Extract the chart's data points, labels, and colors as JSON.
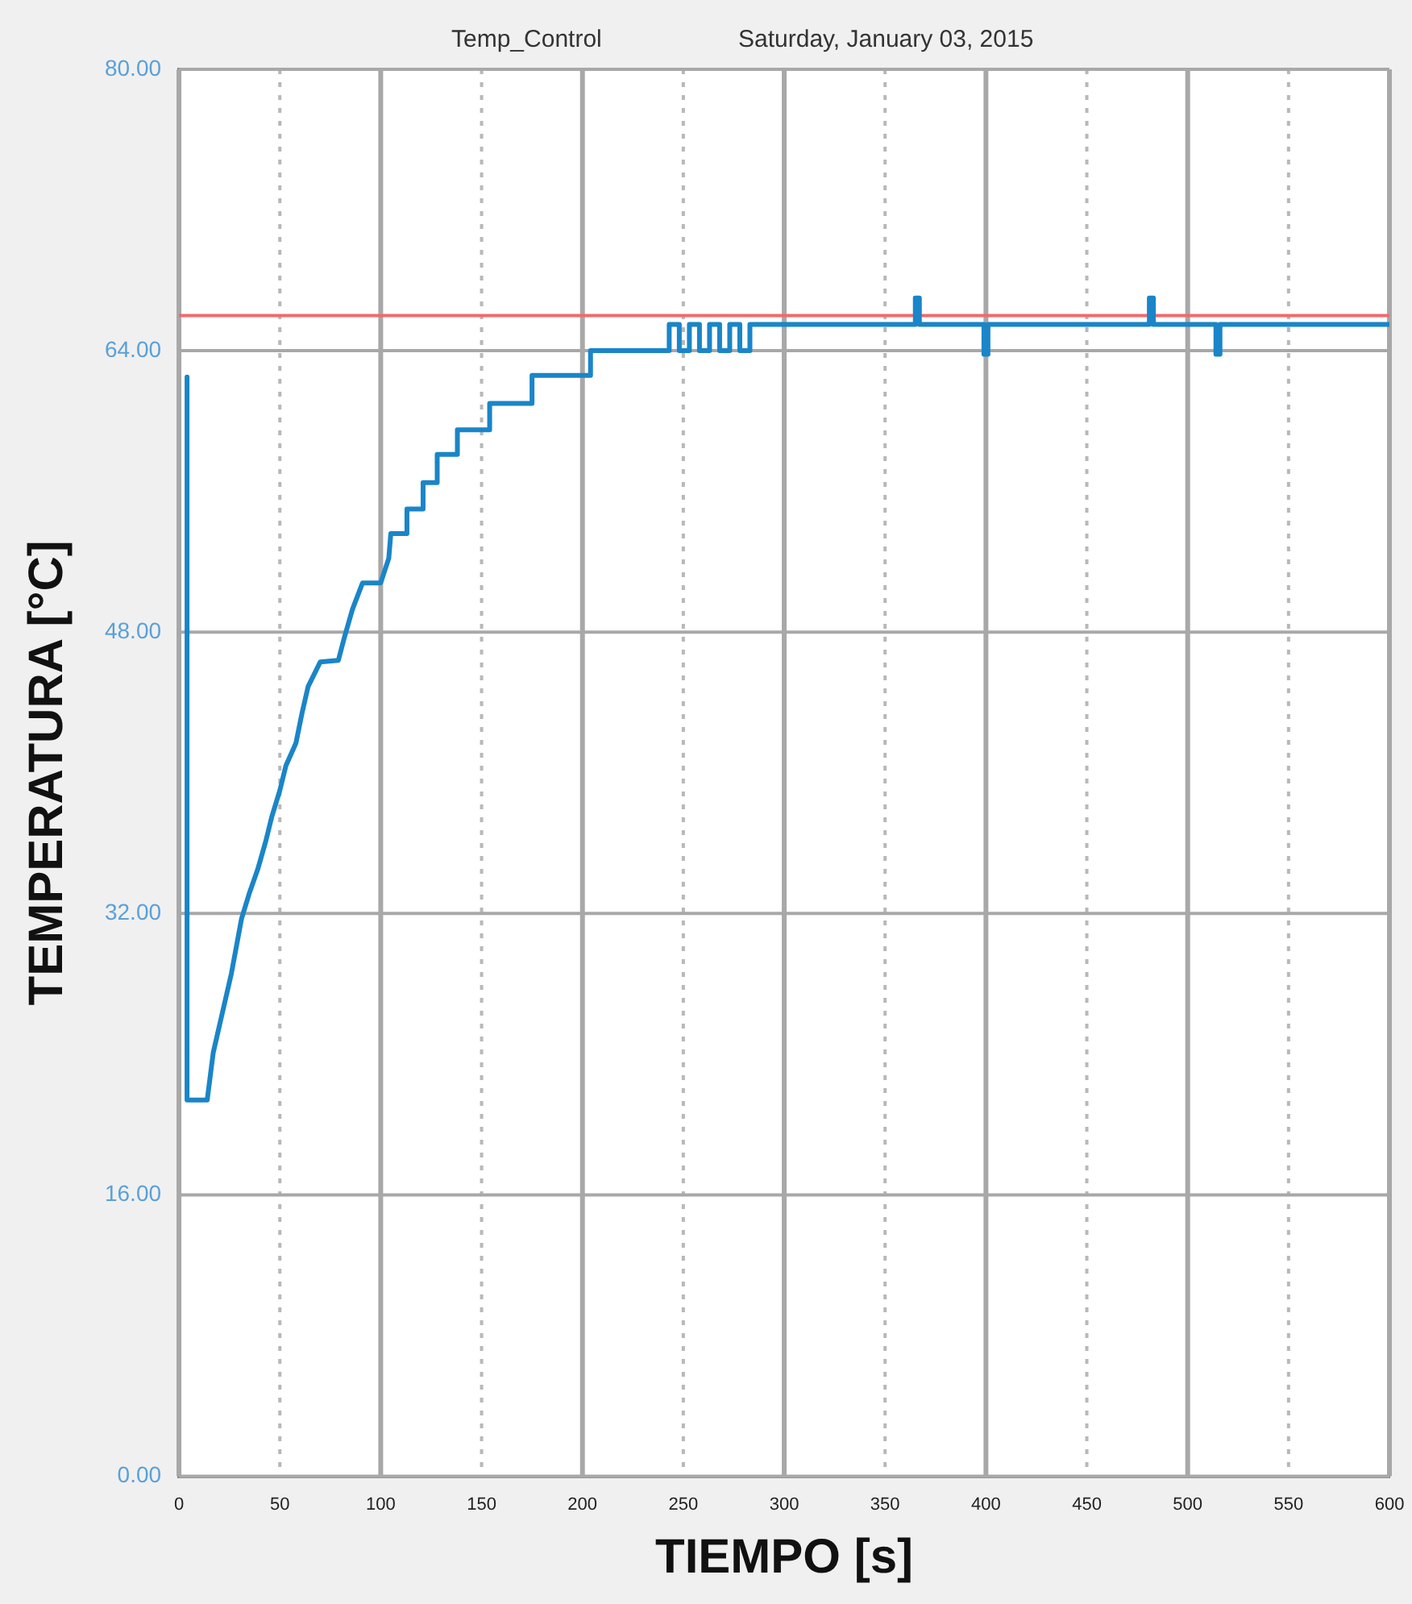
{
  "chart_data": {
    "type": "line",
    "title": "Temp_Control",
    "subtitle": "Saturday, January 03, 2015",
    "xlabel": "TIEMPO [s]",
    "ylabel": "TEMPERATURA [°C]",
    "xlim": [
      0,
      600
    ],
    "xticks": [
      0,
      50,
      100,
      150,
      200,
      250,
      300,
      350,
      400,
      450,
      500,
      550,
      600
    ],
    "ylim": [
      0,
      80
    ],
    "yticks": [
      {
        "value": 0,
        "label": "0.00"
      },
      {
        "value": 16,
        "label": "16.00"
      },
      {
        "value": 32,
        "label": "32.00"
      },
      {
        "value": 48,
        "label": "48.00"
      },
      {
        "value": 64,
        "label": "64.00"
      },
      {
        "value": 80,
        "label": "80.00"
      }
    ],
    "grid": true,
    "legend": false,
    "marker": "none",
    "line_style": "solid",
    "ref_lines": [
      {
        "axis": "y",
        "value": 66,
        "color": "#f06a6a"
      }
    ],
    "series": [
      {
        "color": "#1a85c8",
        "x": [
          4,
          4,
          14,
          17,
          20,
          26,
          31,
          35,
          39,
          43,
          46,
          50,
          53,
          58,
          61,
          64,
          70,
          79,
          82,
          86,
          91,
          100,
          104,
          105,
          113,
          113,
          121,
          121,
          128,
          128,
          138,
          138,
          154,
          154,
          175,
          175,
          204,
          204,
          243,
          243,
          248,
          248,
          253,
          253,
          258,
          258,
          263,
          263,
          268,
          268,
          273,
          273,
          278,
          278,
          283,
          283,
          365,
          365,
          367,
          367,
          399,
          399,
          401,
          401,
          481,
          481,
          483,
          483,
          514,
          514,
          516,
          516,
          600
        ],
        "values": [
          62.5,
          21.4,
          21.4,
          24.1,
          25.6,
          28.6,
          31.7,
          33.2,
          34.5,
          36.1,
          37.5,
          39,
          40.4,
          41.7,
          43.4,
          44.9,
          46.3,
          46.4,
          47.7,
          49.3,
          50.8,
          50.8,
          52.2,
          53.6,
          53.6,
          55,
          55,
          56.5,
          56.5,
          58.1,
          58.1,
          59.5,
          59.5,
          61,
          61,
          62.6,
          62.6,
          64,
          64,
          65.5,
          65.5,
          64,
          64,
          65.5,
          65.5,
          64,
          64,
          65.5,
          65.5,
          64,
          64,
          65.5,
          65.5,
          64,
          64,
          65.5,
          65.5,
          67,
          67,
          65.5,
          65.5,
          63.8,
          63.8,
          65.5,
          65.5,
          67,
          67,
          65.5,
          65.5,
          63.8,
          63.8,
          65.5,
          65.5
        ]
      }
    ]
  }
}
